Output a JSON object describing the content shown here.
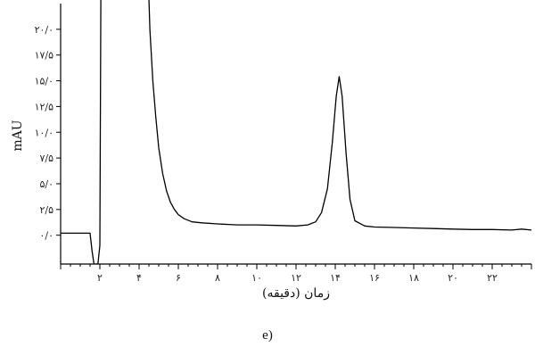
{
  "chart_data": {
    "type": "line",
    "xlabel": "زمان (دقیقه)",
    "ylabel": "mAU",
    "caption": "e)",
    "xlim": [
      0,
      24
    ],
    "ylim": [
      -2.8,
      22.5
    ],
    "x_ticks": [
      {
        "value": 2,
        "label": "۲"
      },
      {
        "value": 4,
        "label": "۴"
      },
      {
        "value": 6,
        "label": "۶"
      },
      {
        "value": 8,
        "label": "۸"
      },
      {
        "value": 10,
        "label": "۱۰"
      },
      {
        "value": 12,
        "label": "۱۲"
      },
      {
        "value": 14,
        "label": "۱۴"
      },
      {
        "value": 16,
        "label": "۱۶"
      },
      {
        "value": 18,
        "label": "۱۸"
      },
      {
        "value": 20,
        "label": "۲۰"
      },
      {
        "value": 22,
        "label": "۲۲"
      }
    ],
    "y_ticks": [
      {
        "value": 0,
        "label": "۰/۰"
      },
      {
        "value": 2.5,
        "label": "۲/۵"
      },
      {
        "value": 5,
        "label": "۵/۰"
      },
      {
        "value": 7.5,
        "label": "۷/۵"
      },
      {
        "value": 10,
        "label": "۱۰/۰"
      },
      {
        "value": 12.5,
        "label": "۱۲/۵"
      },
      {
        "value": 15,
        "label": "۱۵/۰"
      },
      {
        "value": 17.5,
        "label": "۱۷/۵"
      },
      {
        "value": 20,
        "label": "۲۰/۰"
      }
    ],
    "series": [
      {
        "color": "#000000",
        "points": [
          [
            0.0,
            0.2
          ],
          [
            1.0,
            0.2
          ],
          [
            1.5,
            0.2
          ],
          [
            1.6,
            -1.5
          ],
          [
            1.7,
            -2.8
          ],
          [
            1.9,
            -2.8
          ],
          [
            2.0,
            -1.0
          ],
          [
            2.05,
            23.0
          ],
          [
            2.1,
            23.0
          ],
          [
            4.5,
            23.0
          ],
          [
            4.55,
            20.0
          ],
          [
            4.7,
            15.0
          ],
          [
            4.85,
            11.5
          ],
          [
            5.0,
            8.5
          ],
          [
            5.2,
            6.0
          ],
          [
            5.4,
            4.3
          ],
          [
            5.6,
            3.2
          ],
          [
            5.8,
            2.5
          ],
          [
            6.0,
            2.0
          ],
          [
            6.3,
            1.6
          ],
          [
            6.7,
            1.3
          ],
          [
            7.2,
            1.2
          ],
          [
            8.0,
            1.1
          ],
          [
            9.0,
            1.0
          ],
          [
            10.0,
            1.0
          ],
          [
            11.0,
            0.95
          ],
          [
            12.0,
            0.9
          ],
          [
            12.6,
            1.0
          ],
          [
            13.0,
            1.3
          ],
          [
            13.3,
            2.2
          ],
          [
            13.6,
            4.5
          ],
          [
            13.85,
            9.0
          ],
          [
            14.05,
            13.5
          ],
          [
            14.2,
            15.4
          ],
          [
            14.35,
            13.5
          ],
          [
            14.55,
            8.0
          ],
          [
            14.75,
            3.5
          ],
          [
            15.0,
            1.4
          ],
          [
            15.5,
            0.9
          ],
          [
            16.0,
            0.8
          ],
          [
            17.0,
            0.75
          ],
          [
            18.0,
            0.7
          ],
          [
            19.0,
            0.65
          ],
          [
            20.0,
            0.6
          ],
          [
            21.0,
            0.55
          ],
          [
            22.0,
            0.55
          ],
          [
            23.0,
            0.5
          ],
          [
            23.5,
            0.6
          ],
          [
            24.0,
            0.5
          ]
        ]
      }
    ]
  }
}
